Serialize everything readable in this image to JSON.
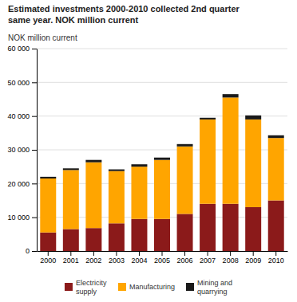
{
  "chart_data": {
    "type": "bar",
    "stacked": true,
    "title": "Estimated investments 2000-2010 collected 2nd quarter\nsame year. NOK million current",
    "ylabel": "NOK million current",
    "categories": [
      "2000",
      "2001",
      "2002",
      "2003",
      "2004",
      "2005",
      "2006",
      "2007",
      "2008",
      "2009",
      "2010"
    ],
    "series": [
      {
        "name": "Electricity\nsupply",
        "color": "#8B1A1A",
        "values": [
          5500,
          6500,
          6800,
          8200,
          9500,
          9500,
          11000,
          14000,
          14000,
          13000,
          15000
        ]
      },
      {
        "name": "Manufacturing",
        "color": "#FFA500",
        "values": [
          16000,
          17500,
          19500,
          15500,
          15500,
          17500,
          20000,
          25000,
          31500,
          26000,
          18500
        ]
      },
      {
        "name": "Mining and\nquarrying",
        "color": "#1a1a1a",
        "values": [
          500,
          500,
          700,
          500,
          700,
          700,
          700,
          500,
          1000,
          1200,
          800
        ]
      }
    ],
    "ylim": [
      0,
      60000
    ],
    "yticks": [
      0,
      {
        "value": 10000,
        "label": "10 000"
      },
      {
        "value": 20000,
        "label": "20 000"
      },
      {
        "value": 30000,
        "label": "30 000"
      },
      {
        "value": 40000,
        "label": "40 000"
      },
      {
        "value": 50000,
        "label": "50 000"
      },
      {
        "value": 60000,
        "label": "60 000"
      }
    ],
    "grid": true,
    "legend": "bottom"
  }
}
